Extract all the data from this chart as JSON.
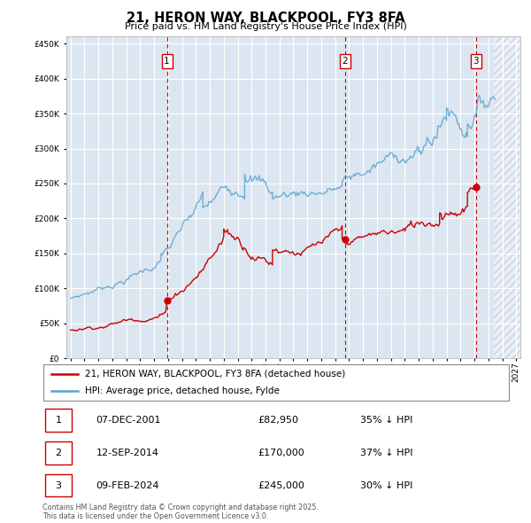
{
  "title": "21, HERON WAY, BLACKPOOL, FY3 8FA",
  "subtitle": "Price paid vs. HM Land Registry's House Price Index (HPI)",
  "hpi_label": "HPI: Average price, detached house, Fylde",
  "property_label": "21, HERON WAY, BLACKPOOL, FY3 8FA (detached house)",
  "footer_line1": "Contains HM Land Registry data © Crown copyright and database right 2025.",
  "footer_line2": "This data is licensed under the Open Government Licence v3.0.",
  "sales": [
    {
      "num": 1,
      "date": "07-DEC-2001",
      "x_year": 2001.92,
      "price": 82950,
      "pct": "35%",
      "dir": "↓"
    },
    {
      "num": 2,
      "date": "12-SEP-2014",
      "x_year": 2014.7,
      "price": 170000,
      "pct": "37%",
      "dir": "↓"
    },
    {
      "num": 3,
      "date": "09-FEB-2024",
      "x_year": 2024.11,
      "price": 245000,
      "pct": "30%",
      "dir": "↓"
    }
  ],
  "ylim": [
    0,
    460000
  ],
  "xlim_start": 1994.7,
  "xlim_end": 2027.3,
  "future_shade_start": 2025.42,
  "sale_shade_start": 2001.92,
  "sale_shade_end": 2014.7,
  "plot_bg": "#dce6f1",
  "shade_between_sales": "#dce6f1",
  "future_shade_color": "#dce6f1",
  "grid_color": "#ffffff",
  "hpi_color": "#5ba3d0",
  "sale_color": "#cc0000",
  "dashed_line_color": "#cc0000",
  "annotation_box_color": "#cc0000"
}
